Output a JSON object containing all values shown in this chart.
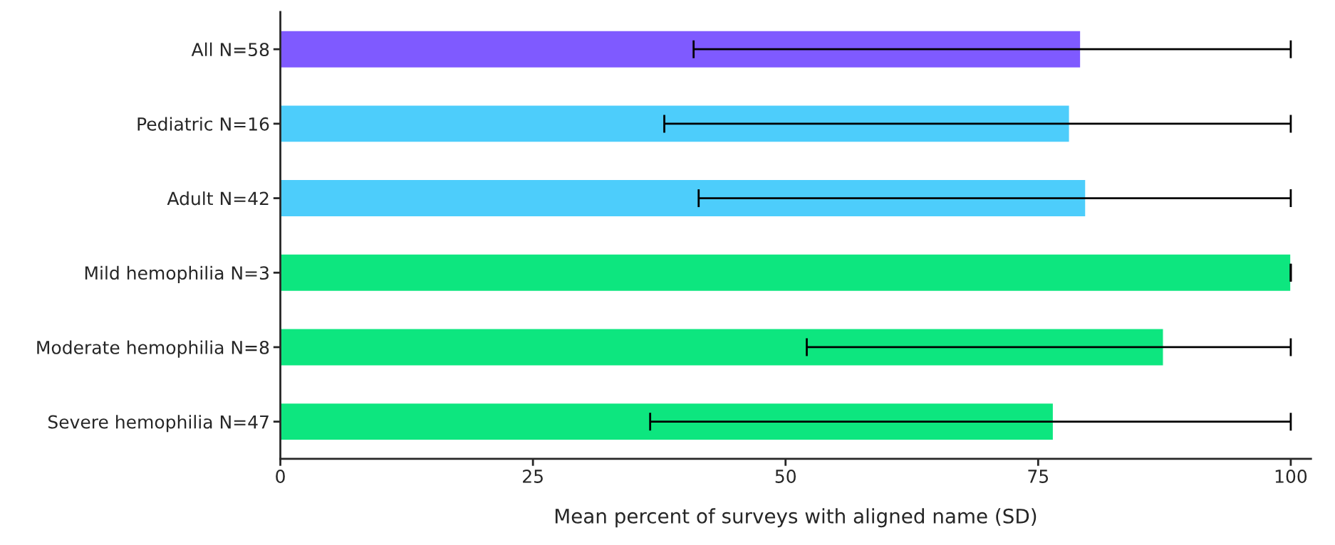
{
  "chart_data": {
    "type": "bar",
    "orientation": "horizontal",
    "categories": [
      "All N=58",
      "Pediatric N=16",
      "Adult N=42",
      "Mild hemophilia N=3",
      "Moderate hemophilia N=8",
      "Severe hemophilia N=47"
    ],
    "values": [
      79.2,
      78.1,
      79.7,
      100,
      87.4,
      76.5
    ],
    "errors": [
      [
        40.9,
        100
      ],
      [
        38.0,
        100
      ],
      [
        41.4,
        100
      ],
      [
        100,
        100
      ],
      [
        52.1,
        100
      ],
      [
        36.6,
        100
      ]
    ],
    "colors": [
      "#7f5aff",
      "#4dcdfb",
      "#4dcdfb",
      "#0de67f",
      "#0de67f",
      "#0de67f"
    ],
    "xlabel": "Mean percent of surveys with aligned name (SD)",
    "xlim": [
      0,
      102
    ],
    "xticks": [
      0,
      25,
      50,
      75,
      100
    ],
    "grid": false
  }
}
